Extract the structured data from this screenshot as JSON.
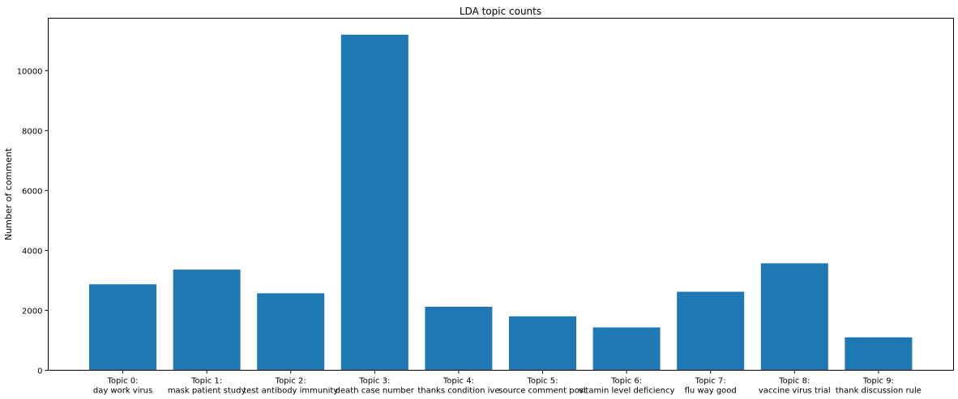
{
  "chart_data": {
    "type": "bar",
    "title": "LDA topic counts",
    "xlabel": "",
    "ylabel": "Number of comment",
    "ylim": [
      0,
      11750
    ],
    "yticks": [
      0,
      2000,
      4000,
      6000,
      8000,
      10000
    ],
    "grid": false,
    "bar_color": "#1f77b4",
    "categories": [
      [
        "Topic 0:",
        "day work virus"
      ],
      [
        "Topic 1:",
        "mask patient study"
      ],
      [
        "Topic 2:",
        "test antibody immunity"
      ],
      [
        "Topic 3:",
        "death case number"
      ],
      [
        "Topic 4:",
        "thanks condition ive"
      ],
      [
        "Topic 5:",
        "source comment post"
      ],
      [
        "Topic 6:",
        "vitamin level deficiency"
      ],
      [
        "Topic 7:",
        "flu way good"
      ],
      [
        "Topic 8:",
        "vaccine virus trial"
      ],
      [
        "Topic 9:",
        "thank discussion rule"
      ]
    ],
    "values": [
      2870,
      3360,
      2570,
      11200,
      2120,
      1800,
      1430,
      2620,
      3570,
      1100
    ]
  }
}
